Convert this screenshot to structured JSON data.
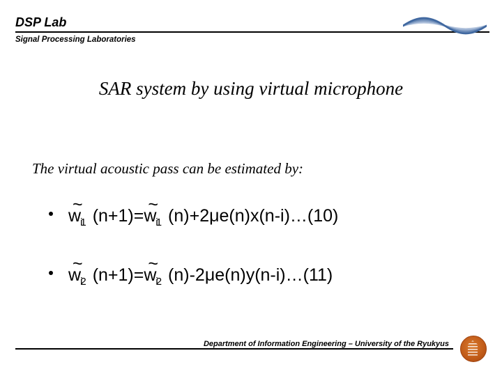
{
  "header": {
    "lab_name": "DSP Lab",
    "lab_sub": "Signal Processing Laboratories",
    "waves": {
      "width": 120,
      "height": 46,
      "colors": [
        "#b8c8e0",
        "#9ab0d0",
        "#7c98c0",
        "#5e80b0",
        "#4068a0"
      ],
      "stroke_width": 2.5
    }
  },
  "title": "SAR system by using virtual microphone",
  "intro": "The virtual acoustic pass can be estimated by:",
  "eqs": {
    "w": "w",
    "tilde": "~",
    "sub_i": "i",
    "e1": {
      "sup1": "1",
      "arg1": " (n+1)=",
      "sup2": "1",
      "arg2": " (n)+2μe(n)x(n-i)…(10)"
    },
    "e2": {
      "sup1": "2",
      "arg1": " (n+1)=",
      "sup2": "2",
      "arg2": " (n)-2μe(n)y(n-i)…(11)"
    }
  },
  "footer": {
    "text": "Department of Information Engineering – University of the Ryukyus"
  }
}
